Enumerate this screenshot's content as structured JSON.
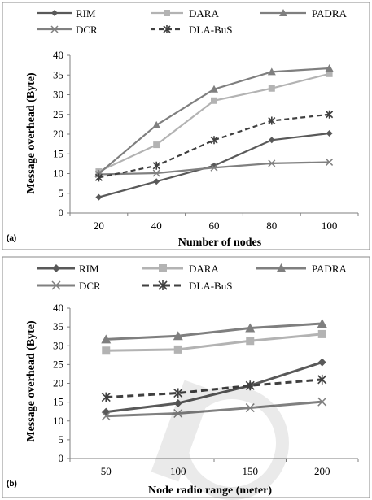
{
  "colors": {
    "RIM": "#595959",
    "DARA": "#b3b3b3",
    "PADRA": "#7f7f7f",
    "DCR": "#808080",
    "DLA-BuS": "#404040"
  },
  "chart_data": [
    {
      "type": "line",
      "panel_label": "(a)",
      "x": [
        20,
        40,
        60,
        80,
        100
      ],
      "xlabel": "Number of nodes",
      "ylabel": "Message overhead (Byte)",
      "ylim": [
        0,
        40
      ],
      "yticks": [
        0,
        5,
        10,
        15,
        20,
        25,
        30,
        35,
        40
      ],
      "grid": false,
      "legend_position": "top",
      "series": [
        {
          "name": "RIM",
          "values": [
            4.0,
            8.0,
            12.0,
            18.5,
            20.2
          ],
          "marker": "diamond",
          "dashed": false
        },
        {
          "name": "DARA",
          "values": [
            10.5,
            17.3,
            28.5,
            31.6,
            35.3
          ],
          "marker": "square",
          "dashed": false
        },
        {
          "name": "PADRA",
          "values": [
            10.0,
            22.3,
            31.4,
            35.8,
            36.7
          ],
          "marker": "triangle",
          "dashed": false
        },
        {
          "name": "DCR",
          "values": [
            9.8,
            10.1,
            11.5,
            12.6,
            12.9
          ],
          "marker": "x",
          "dashed": false
        },
        {
          "name": "DLA-BuS",
          "values": [
            9.0,
            12.0,
            18.5,
            23.4,
            25.0
          ],
          "marker": "star",
          "dashed": true
        }
      ]
    },
    {
      "type": "line",
      "panel_label": "(b)",
      "x": [
        50,
        100,
        150,
        200
      ],
      "xlabel": "Node radio range (meter)",
      "ylabel": "Message overhead (Byte)",
      "ylim": [
        0,
        40
      ],
      "yticks": [
        0,
        5,
        10,
        15,
        20,
        25,
        30,
        35,
        40
      ],
      "grid": false,
      "legend_position": "top",
      "series": [
        {
          "name": "RIM",
          "values": [
            12.4,
            14.7,
            19.4,
            25.6
          ],
          "marker": "diamond",
          "dashed": false
        },
        {
          "name": "DARA",
          "values": [
            28.7,
            29.0,
            31.3,
            33.1
          ],
          "marker": "square",
          "dashed": false
        },
        {
          "name": "PADRA",
          "values": [
            31.7,
            32.6,
            34.7,
            35.9
          ],
          "marker": "triangle",
          "dashed": false
        },
        {
          "name": "DCR",
          "values": [
            11.3,
            12.0,
            13.5,
            15.1
          ],
          "marker": "x",
          "dashed": false
        },
        {
          "name": "DLA-BuS",
          "values": [
            16.3,
            17.4,
            19.4,
            21.0
          ],
          "marker": "star",
          "dashed": true
        }
      ]
    }
  ]
}
